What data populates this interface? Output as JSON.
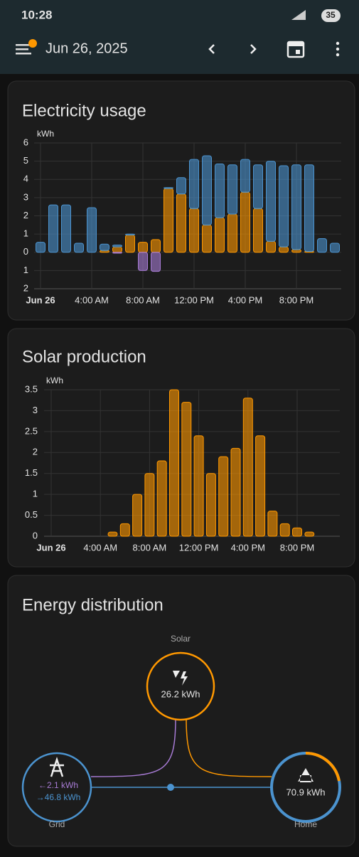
{
  "status_bar": {
    "time": "10:28",
    "battery": "35"
  },
  "header": {
    "date": "Jun 26, 2025"
  },
  "chart_data": [
    {
      "type": "bar",
      "title": "Electricity usage",
      "y_label": "kWh",
      "stacked": true,
      "grid": true,
      "categories": [
        "Jun 26",
        null,
        null,
        null,
        "4:00 AM",
        null,
        null,
        null,
        "8:00 AM",
        null,
        null,
        null,
        "12:00 PM",
        null,
        null,
        null,
        "4:00 PM",
        null,
        null,
        null,
        "8:00 PM",
        null,
        null,
        null
      ],
      "series": [
        {
          "color": "#ff9800",
          "values": [
            0,
            0,
            0,
            0,
            0,
            0.1,
            0.3,
            0.95,
            0.55,
            0.7,
            3.5,
            3.2,
            2.4,
            1.5,
            1.9,
            2.1,
            3.3,
            2.4,
            0.6,
            0.3,
            0.15,
            0.05,
            0,
            0
          ]
        },
        {
          "color": "#4b93cf",
          "values": [
            0.55,
            2.6,
            2.6,
            0.5,
            2.45,
            0.35,
            0.1,
            0.05,
            0,
            0,
            0.05,
            0.9,
            2.7,
            3.8,
            2.95,
            2.7,
            1.8,
            2.4,
            4.4,
            4.45,
            4.65,
            4.75,
            0.75,
            0.5
          ]
        },
        {
          "color": "#a77bd4",
          "values": [
            0,
            0,
            0,
            0,
            0,
            0,
            -0.05,
            0,
            -1.0,
            -1.05,
            0,
            0,
            0,
            0,
            0,
            0,
            0,
            0,
            0,
            0,
            0,
            0,
            0,
            0
          ]
        }
      ],
      "ylim": [
        -2,
        6
      ],
      "yticks": [
        {
          "value": -2,
          "label": "2"
        },
        {
          "value": -1,
          "label": "1"
        },
        0,
        1,
        2,
        3,
        4,
        5,
        6
      ]
    },
    {
      "type": "bar",
      "title": "Solar production",
      "y_label": "kWh",
      "grid": true,
      "categories": [
        "Jun 26",
        null,
        null,
        null,
        "4:00 AM",
        null,
        null,
        null,
        "8:00 AM",
        null,
        null,
        null,
        "12:00 PM",
        null,
        null,
        null,
        "4:00 PM",
        null,
        null,
        null,
        "8:00 PM",
        null,
        null,
        null
      ],
      "series": [
        {
          "color": "#ff9800",
          "values": [
            0,
            0,
            0,
            0,
            0,
            0.1,
            0.3,
            1.0,
            1.5,
            1.8,
            3.5,
            3.2,
            2.4,
            1.5,
            1.9,
            2.1,
            3.3,
            2.4,
            0.6,
            0.3,
            0.2,
            0.1,
            0,
            0
          ]
        }
      ],
      "ylim": [
        0,
        3.5
      ],
      "yticks": [
        0,
        0.5,
        1,
        1.5,
        2,
        2.5,
        3,
        3.5
      ]
    }
  ],
  "distribution": {
    "title": "Energy distribution",
    "solar_label": "Solar",
    "solar_value": "26.2 kWh",
    "grid_label": "Grid",
    "grid_in": "←2.1 kWh",
    "grid_out": "→46.8 kWh",
    "home_label": "Home",
    "home_value": "70.9 kWh"
  }
}
